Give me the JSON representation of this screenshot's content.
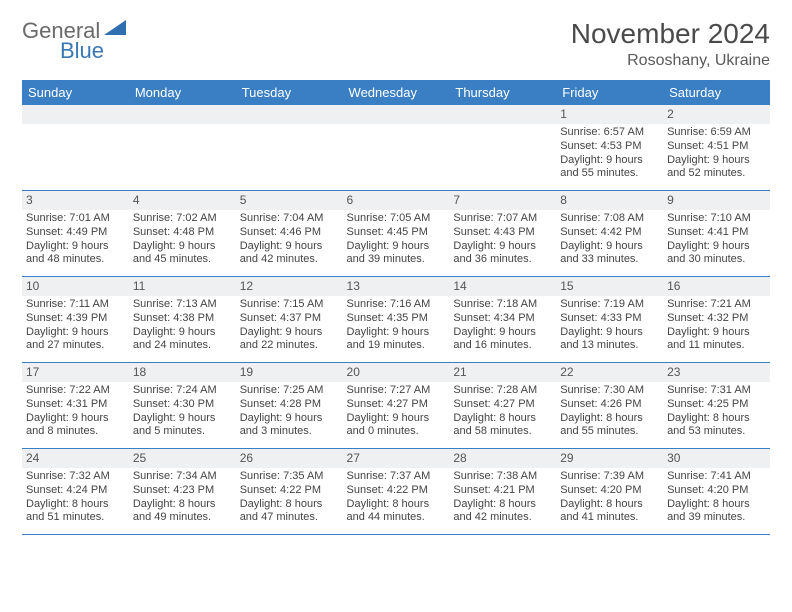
{
  "logo": {
    "word1": "General",
    "word2": "Blue"
  },
  "title": "November 2024",
  "location": "Rososhany, Ukraine",
  "colors": {
    "header_bg": "#3a7fc4",
    "header_text": "#ffffff",
    "grid_line": "#3a7fc4",
    "daynum_bg": "#eef0f2",
    "body_text": "#444444",
    "logo_gray": "#6a6a6a",
    "logo_blue": "#3a78b5"
  },
  "weekdays": [
    "Sunday",
    "Monday",
    "Tuesday",
    "Wednesday",
    "Thursday",
    "Friday",
    "Saturday"
  ],
  "weeks": [
    [
      null,
      null,
      null,
      null,
      null,
      {
        "n": "1",
        "sr": "Sunrise: 6:57 AM",
        "ss": "Sunset: 4:53 PM",
        "d1": "Daylight: 9 hours",
        "d2": "and 55 minutes."
      },
      {
        "n": "2",
        "sr": "Sunrise: 6:59 AM",
        "ss": "Sunset: 4:51 PM",
        "d1": "Daylight: 9 hours",
        "d2": "and 52 minutes."
      }
    ],
    [
      {
        "n": "3",
        "sr": "Sunrise: 7:01 AM",
        "ss": "Sunset: 4:49 PM",
        "d1": "Daylight: 9 hours",
        "d2": "and 48 minutes."
      },
      {
        "n": "4",
        "sr": "Sunrise: 7:02 AM",
        "ss": "Sunset: 4:48 PM",
        "d1": "Daylight: 9 hours",
        "d2": "and 45 minutes."
      },
      {
        "n": "5",
        "sr": "Sunrise: 7:04 AM",
        "ss": "Sunset: 4:46 PM",
        "d1": "Daylight: 9 hours",
        "d2": "and 42 minutes."
      },
      {
        "n": "6",
        "sr": "Sunrise: 7:05 AM",
        "ss": "Sunset: 4:45 PM",
        "d1": "Daylight: 9 hours",
        "d2": "and 39 minutes."
      },
      {
        "n": "7",
        "sr": "Sunrise: 7:07 AM",
        "ss": "Sunset: 4:43 PM",
        "d1": "Daylight: 9 hours",
        "d2": "and 36 minutes."
      },
      {
        "n": "8",
        "sr": "Sunrise: 7:08 AM",
        "ss": "Sunset: 4:42 PM",
        "d1": "Daylight: 9 hours",
        "d2": "and 33 minutes."
      },
      {
        "n": "9",
        "sr": "Sunrise: 7:10 AM",
        "ss": "Sunset: 4:41 PM",
        "d1": "Daylight: 9 hours",
        "d2": "and 30 minutes."
      }
    ],
    [
      {
        "n": "10",
        "sr": "Sunrise: 7:11 AM",
        "ss": "Sunset: 4:39 PM",
        "d1": "Daylight: 9 hours",
        "d2": "and 27 minutes."
      },
      {
        "n": "11",
        "sr": "Sunrise: 7:13 AM",
        "ss": "Sunset: 4:38 PM",
        "d1": "Daylight: 9 hours",
        "d2": "and 24 minutes."
      },
      {
        "n": "12",
        "sr": "Sunrise: 7:15 AM",
        "ss": "Sunset: 4:37 PM",
        "d1": "Daylight: 9 hours",
        "d2": "and 22 minutes."
      },
      {
        "n": "13",
        "sr": "Sunrise: 7:16 AM",
        "ss": "Sunset: 4:35 PM",
        "d1": "Daylight: 9 hours",
        "d2": "and 19 minutes."
      },
      {
        "n": "14",
        "sr": "Sunrise: 7:18 AM",
        "ss": "Sunset: 4:34 PM",
        "d1": "Daylight: 9 hours",
        "d2": "and 16 minutes."
      },
      {
        "n": "15",
        "sr": "Sunrise: 7:19 AM",
        "ss": "Sunset: 4:33 PM",
        "d1": "Daylight: 9 hours",
        "d2": "and 13 minutes."
      },
      {
        "n": "16",
        "sr": "Sunrise: 7:21 AM",
        "ss": "Sunset: 4:32 PM",
        "d1": "Daylight: 9 hours",
        "d2": "and 11 minutes."
      }
    ],
    [
      {
        "n": "17",
        "sr": "Sunrise: 7:22 AM",
        "ss": "Sunset: 4:31 PM",
        "d1": "Daylight: 9 hours",
        "d2": "and 8 minutes."
      },
      {
        "n": "18",
        "sr": "Sunrise: 7:24 AM",
        "ss": "Sunset: 4:30 PM",
        "d1": "Daylight: 9 hours",
        "d2": "and 5 minutes."
      },
      {
        "n": "19",
        "sr": "Sunrise: 7:25 AM",
        "ss": "Sunset: 4:28 PM",
        "d1": "Daylight: 9 hours",
        "d2": "and 3 minutes."
      },
      {
        "n": "20",
        "sr": "Sunrise: 7:27 AM",
        "ss": "Sunset: 4:27 PM",
        "d1": "Daylight: 9 hours",
        "d2": "and 0 minutes."
      },
      {
        "n": "21",
        "sr": "Sunrise: 7:28 AM",
        "ss": "Sunset: 4:27 PM",
        "d1": "Daylight: 8 hours",
        "d2": "and 58 minutes."
      },
      {
        "n": "22",
        "sr": "Sunrise: 7:30 AM",
        "ss": "Sunset: 4:26 PM",
        "d1": "Daylight: 8 hours",
        "d2": "and 55 minutes."
      },
      {
        "n": "23",
        "sr": "Sunrise: 7:31 AM",
        "ss": "Sunset: 4:25 PM",
        "d1": "Daylight: 8 hours",
        "d2": "and 53 minutes."
      }
    ],
    [
      {
        "n": "24",
        "sr": "Sunrise: 7:32 AM",
        "ss": "Sunset: 4:24 PM",
        "d1": "Daylight: 8 hours",
        "d2": "and 51 minutes."
      },
      {
        "n": "25",
        "sr": "Sunrise: 7:34 AM",
        "ss": "Sunset: 4:23 PM",
        "d1": "Daylight: 8 hours",
        "d2": "and 49 minutes."
      },
      {
        "n": "26",
        "sr": "Sunrise: 7:35 AM",
        "ss": "Sunset: 4:22 PM",
        "d1": "Daylight: 8 hours",
        "d2": "and 47 minutes."
      },
      {
        "n": "27",
        "sr": "Sunrise: 7:37 AM",
        "ss": "Sunset: 4:22 PM",
        "d1": "Daylight: 8 hours",
        "d2": "and 44 minutes."
      },
      {
        "n": "28",
        "sr": "Sunrise: 7:38 AM",
        "ss": "Sunset: 4:21 PM",
        "d1": "Daylight: 8 hours",
        "d2": "and 42 minutes."
      },
      {
        "n": "29",
        "sr": "Sunrise: 7:39 AM",
        "ss": "Sunset: 4:20 PM",
        "d1": "Daylight: 8 hours",
        "d2": "and 41 minutes."
      },
      {
        "n": "30",
        "sr": "Sunrise: 7:41 AM",
        "ss": "Sunset: 4:20 PM",
        "d1": "Daylight: 8 hours",
        "d2": "and 39 minutes."
      }
    ]
  ]
}
